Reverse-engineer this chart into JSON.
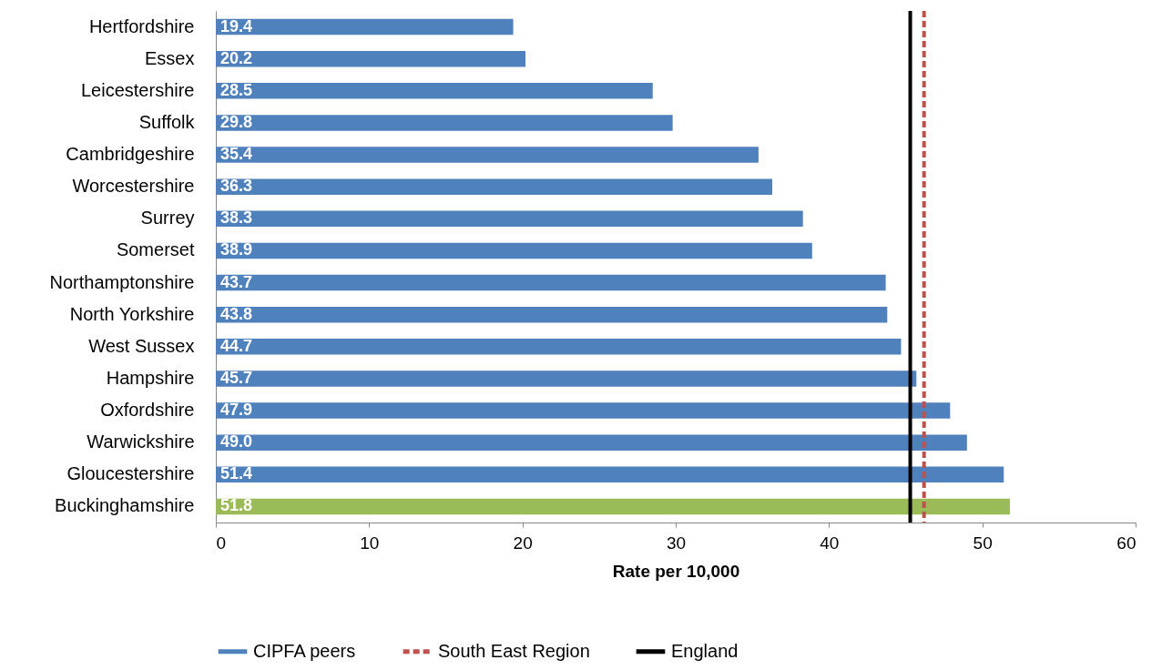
{
  "chart_data": {
    "type": "bar",
    "orientation": "horizontal",
    "xlabel": "Rate per 10,000",
    "categories": [
      "Hertfordshire",
      "Essex",
      "Leicestershire",
      "Suffolk",
      "Cambridgeshire",
      "Worcestershire",
      "Surrey",
      "Somerset",
      "Northamptonshire",
      "North Yorkshire",
      "West Sussex",
      "Hampshire",
      "Oxfordshire",
      "Warwickshire",
      "Gloucestershire",
      "Buckinghamshire"
    ],
    "series": [
      {
        "name": "CIPFA peers",
        "color": "#4f81bd",
        "colors": [
          "#4f81bd",
          "#4f81bd",
          "#4f81bd",
          "#4f81bd",
          "#4f81bd",
          "#4f81bd",
          "#4f81bd",
          "#4f81bd",
          "#4f81bd",
          "#4f81bd",
          "#4f81bd",
          "#4f81bd",
          "#4f81bd",
          "#4f81bd",
          "#4f81bd",
          "#9bbb59"
        ],
        "values": [
          19.4,
          20.2,
          28.5,
          29.8,
          35.4,
          36.3,
          38.3,
          38.9,
          43.7,
          43.8,
          44.7,
          45.7,
          47.9,
          49.0,
          51.4,
          51.8
        ],
        "value_labels": [
          "19.4",
          "20.2",
          "28.5",
          "29.8",
          "35.4",
          "36.3",
          "38.3",
          "38.9",
          "43.7",
          "43.8",
          "44.7",
          "45.7",
          "47.9",
          "49.0",
          "51.4",
          "51.8"
        ]
      }
    ],
    "xlim": [
      0,
      60
    ],
    "xticks": [
      0,
      10,
      20,
      30,
      40,
      50,
      60
    ],
    "ref_lines": [
      {
        "axis": "x",
        "value": 46.2,
        "label": "South East Region",
        "color": "#c0504d",
        "line_style": "dashed"
      },
      {
        "axis": "x",
        "value": 45.3,
        "label": "England",
        "color": "#000000",
        "line_style": "solid"
      }
    ],
    "grid": false,
    "legend": "bottom"
  }
}
